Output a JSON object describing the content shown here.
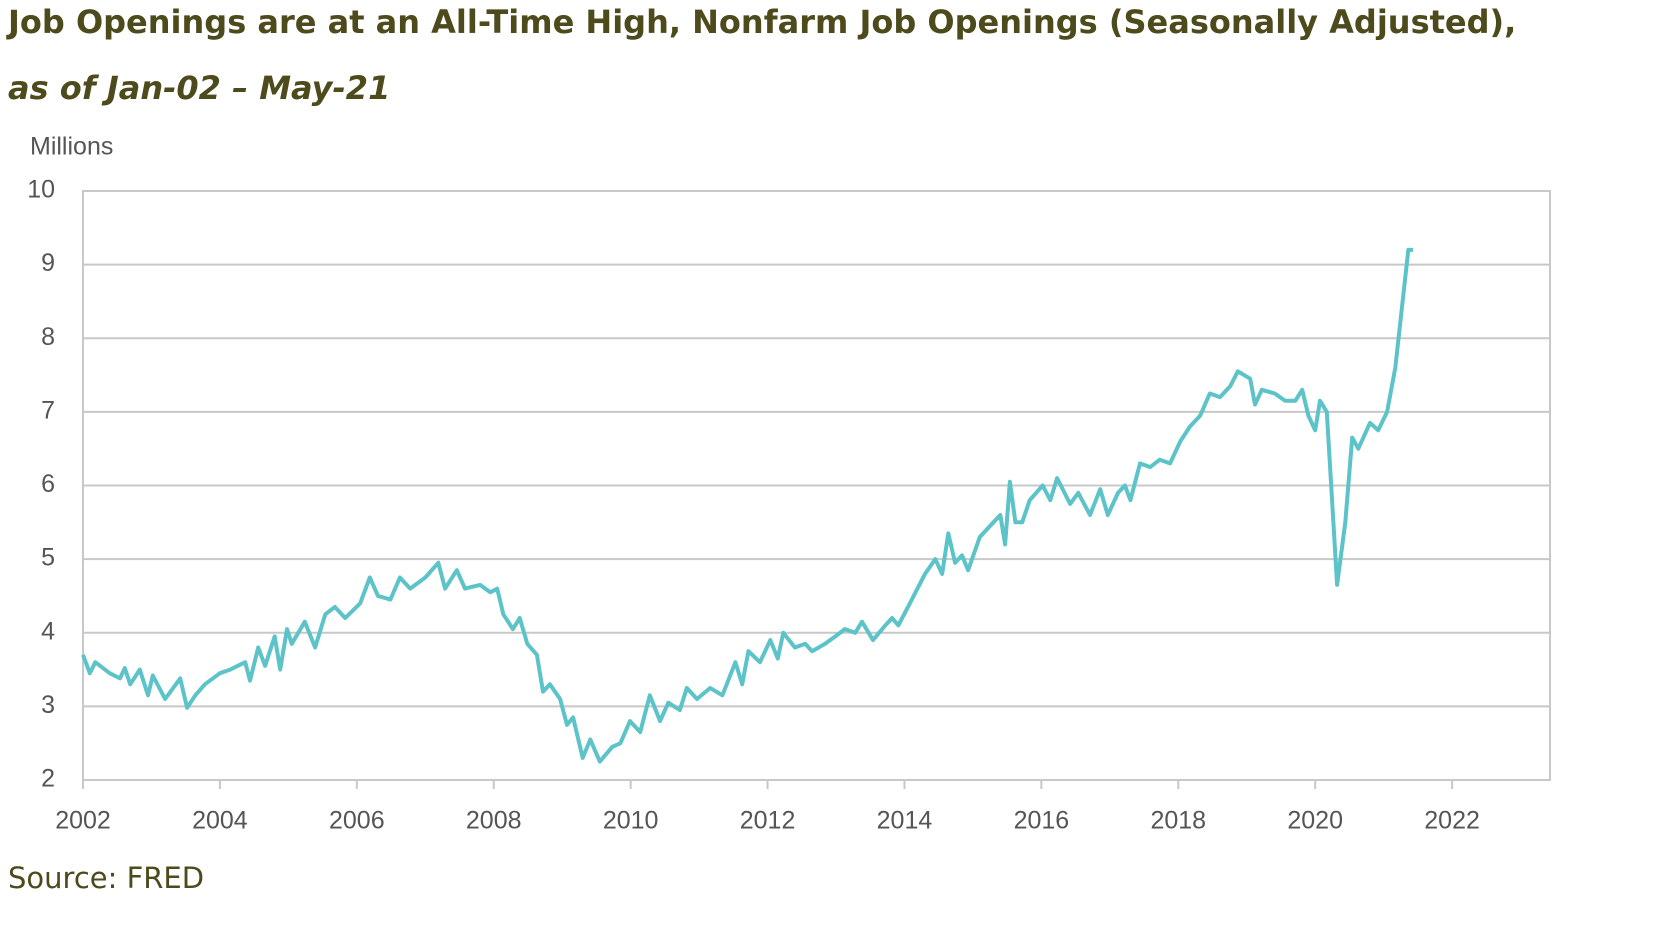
{
  "chart_data": {
    "type": "line",
    "title": "Job Openings are at an All-Time High, Nonfarm Job Openings (Seasonally Adjusted),",
    "subtitle": "as of Jan-02 – May-21",
    "y_label": "Millions",
    "source": "Source: FRED",
    "color": "#5cc3c8",
    "x": [
      2002.0,
      2002.1,
      2002.18,
      2002.39,
      2002.54,
      2002.61,
      2002.69,
      2002.83,
      2002.95,
      2003.02,
      2003.2,
      2003.42,
      2003.52,
      2003.64,
      2003.78,
      2004.0,
      2004.15,
      2004.37,
      2004.44,
      2004.56,
      2004.66,
      2004.8,
      2004.88,
      2004.98,
      2005.05,
      2005.24,
      2005.39,
      2005.54,
      2005.68,
      2005.83,
      2006.05,
      2006.19,
      2006.31,
      2006.49,
      2006.63,
      2006.78,
      2007.0,
      2007.19,
      2007.29,
      2007.46,
      2007.58,
      2007.8,
      2007.95,
      2008.05,
      2008.14,
      2008.28,
      2008.38,
      2008.49,
      2008.63,
      2008.72,
      2008.82,
      2008.97,
      2009.07,
      2009.16,
      2009.3,
      2009.41,
      2009.55,
      2009.73,
      2009.85,
      2009.99,
      2010.14,
      2010.28,
      2010.43,
      2010.55,
      2010.72,
      2010.82,
      2010.97,
      2011.16,
      2011.34,
      2011.53,
      2011.63,
      2011.72,
      2011.89,
      2012.04,
      2012.15,
      2012.23,
      2012.4,
      2012.55,
      2012.65,
      2012.84,
      2012.99,
      2013.13,
      2013.28,
      2013.38,
      2013.54,
      2013.72,
      2013.82,
      2013.91,
      2014.08,
      2014.3,
      2014.45,
      2014.55,
      2014.64,
      2014.74,
      2014.84,
      2014.93,
      2015.1,
      2015.25,
      2015.4,
      2015.47,
      2015.54,
      2015.62,
      2015.72,
      2015.83,
      2016.02,
      2016.13,
      2016.23,
      2016.42,
      2016.54,
      2016.71,
      2016.86,
      2016.97,
      2017.12,
      2017.22,
      2017.3,
      2017.44,
      2017.59,
      2017.73,
      2017.88,
      2018.03,
      2018.17,
      2018.32,
      2018.46,
      2018.61,
      2018.76,
      2018.87,
      2019.05,
      2019.12,
      2019.22,
      2019.41,
      2019.56,
      2019.71,
      2019.81,
      2019.9,
      2020.0,
      2020.07,
      2020.17,
      2020.32,
      2020.44,
      2020.54,
      2020.63,
      2020.8,
      2020.92,
      2021.05,
      2021.17,
      2021.36,
      2021.43
    ],
    "values": [
      3.7,
      3.45,
      3.6,
      3.45,
      3.38,
      3.52,
      3.3,
      3.5,
      3.15,
      3.42,
      3.1,
      3.38,
      2.98,
      3.15,
      3.3,
      3.45,
      3.5,
      3.6,
      3.35,
      3.8,
      3.55,
      3.95,
      3.5,
      4.05,
      3.85,
      4.15,
      3.8,
      4.25,
      4.35,
      4.2,
      4.4,
      4.75,
      4.5,
      4.45,
      4.75,
      4.6,
      4.75,
      4.95,
      4.6,
      4.85,
      4.6,
      4.65,
      4.55,
      4.6,
      4.25,
      4.05,
      4.2,
      3.85,
      3.7,
      3.2,
      3.3,
      3.1,
      2.75,
      2.85,
      2.3,
      2.55,
      2.25,
      2.45,
      2.5,
      2.8,
      2.65,
      3.15,
      2.8,
      3.05,
      2.95,
      3.25,
      3.1,
      3.25,
      3.15,
      3.6,
      3.3,
      3.75,
      3.6,
      3.9,
      3.65,
      4.0,
      3.8,
      3.85,
      3.75,
      3.85,
      3.95,
      4.05,
      4.0,
      4.15,
      3.9,
      4.1,
      4.2,
      4.1,
      4.4,
      4.8,
      5.0,
      4.8,
      5.35,
      4.95,
      5.05,
      4.85,
      5.3,
      5.45,
      5.6,
      5.2,
      6.05,
      5.5,
      5.5,
      5.8,
      6.0,
      5.8,
      6.1,
      5.75,
      5.9,
      5.6,
      5.95,
      5.6,
      5.9,
      6.0,
      5.8,
      6.3,
      6.25,
      6.35,
      6.3,
      6.6,
      6.8,
      6.95,
      7.25,
      7.2,
      7.35,
      7.55,
      7.45,
      7.1,
      7.3,
      7.25,
      7.15,
      7.15,
      7.3,
      6.95,
      6.75,
      7.15,
      7.0,
      4.65,
      5.5,
      6.65,
      6.5,
      6.85,
      6.75,
      7.0,
      7.6,
      9.2,
      9.2
    ],
    "xlim": [
      2002,
      2023.43
    ],
    "xticks": [
      2002,
      2004,
      2006,
      2008,
      2010,
      2012,
      2014,
      2016,
      2018,
      2020,
      2022
    ],
    "ylim": [
      2,
      10
    ],
    "yticks": [
      2,
      3,
      4,
      5,
      6,
      7,
      8,
      9,
      10
    ],
    "grid": true
  }
}
